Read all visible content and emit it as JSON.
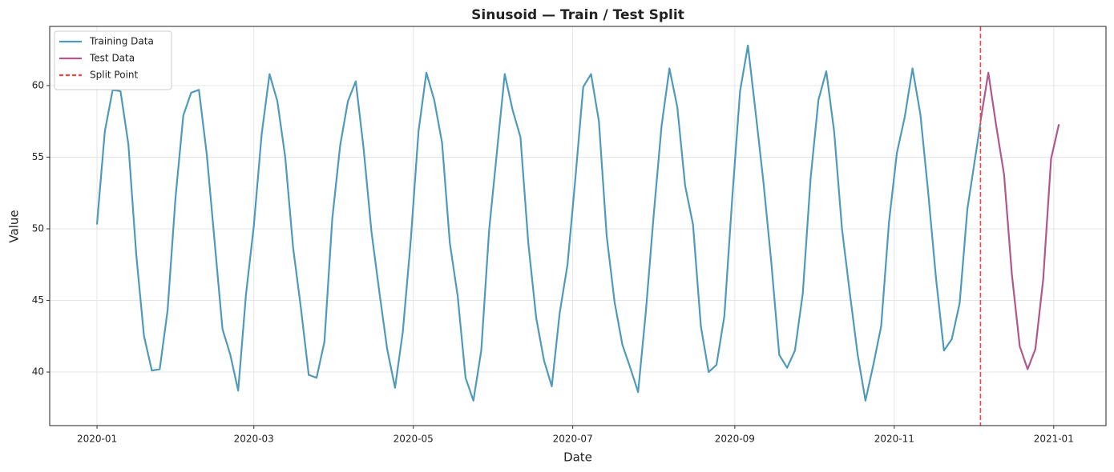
{
  "chart_data": {
    "type": "line",
    "title": "Sinusoid — Train / Test Split",
    "x_label": "Date",
    "y_label": "Value",
    "xlim": [
      -18.1,
      386
    ],
    "ylim": [
      36.26,
      64.13
    ],
    "xticks": [
      {
        "value": 0,
        "label": "2020-01"
      },
      {
        "value": 60,
        "label": "2020-03"
      },
      {
        "value": 121,
        "label": "2020-05"
      },
      {
        "value": 182,
        "label": "2020-07"
      },
      {
        "value": 244,
        "label": "2020-09"
      },
      {
        "value": 305,
        "label": "2020-11"
      },
      {
        "value": 366,
        "label": "2021-01"
      }
    ],
    "yticks": [
      40,
      45,
      50,
      55,
      60
    ],
    "grid": true,
    "legend": "upper-left",
    "series": [
      {
        "name": "Training Data",
        "color": "#4f9aba",
        "x": [
          0,
          3,
          6,
          9,
          12,
          15,
          18,
          21,
          24,
          27,
          30,
          33,
          36,
          39,
          42,
          45,
          48,
          51,
          54,
          57,
          60,
          63,
          66,
          69,
          72,
          75,
          78,
          81,
          84,
          87,
          90,
          93,
          96,
          99,
          102,
          105,
          108,
          111,
          114,
          117,
          120,
          123,
          126,
          129,
          132,
          135,
          138,
          141,
          144,
          147,
          150,
          153,
          156,
          159,
          162,
          165,
          168,
          171,
          174,
          177,
          180,
          183,
          186,
          189,
          192,
          195,
          198,
          201,
          204,
          207,
          210,
          213,
          216,
          219,
          222,
          225,
          228,
          231,
          234,
          237,
          240,
          243,
          246,
          249,
          252,
          255,
          258,
          261,
          264,
          267,
          270,
          273,
          276,
          279,
          282,
          285,
          288,
          291,
          294,
          297,
          300,
          303,
          306,
          309,
          312,
          315,
          318,
          321,
          324,
          327,
          330,
          333,
          336,
          338
        ],
        "values": [
          50.3,
          56.8,
          59.7,
          59.6,
          55.9,
          48.2,
          42.5,
          40.1,
          40.2,
          44.3,
          52.1,
          57.9,
          59.5,
          59.7,
          55.2,
          49.1,
          43.0,
          41.2,
          38.7,
          45.4,
          50.2,
          56.6,
          60.8,
          58.9,
          55.0,
          48.7,
          44.5,
          39.8,
          39.6,
          42.1,
          50.7,
          55.8,
          58.9,
          60.3,
          55.6,
          49.8,
          45.6,
          41.6,
          38.9,
          42.8,
          49.1,
          56.8,
          60.9,
          59.0,
          56.0,
          49.0,
          45.3,
          39.6,
          38.0,
          41.5,
          49.9,
          55.4,
          60.8,
          58.3,
          56.4,
          49.0,
          43.8,
          40.8,
          39.0,
          44.1,
          47.5,
          53.5,
          59.9,
          60.8,
          57.5,
          49.5,
          44.9,
          41.9,
          40.3,
          38.6,
          44.3,
          51.0,
          57.2,
          61.2,
          58.5,
          53.0,
          50.3,
          43.2,
          40.0,
          40.5,
          43.9,
          52.1,
          59.6,
          62.8,
          58.1,
          53.2,
          47.6,
          41.2,
          40.3,
          41.5,
          45.5,
          53.5,
          59.0,
          61.0,
          56.8,
          50.0,
          45.5,
          41.2,
          38.0,
          40.5,
          43.2,
          50.5,
          55.3,
          57.8,
          61.2,
          58.0,
          52.5,
          46.5,
          41.5,
          42.3,
          44.8,
          51.4,
          55.0,
          57.4
        ]
      },
      {
        "name": "Test Data",
        "color": "#b0588a",
        "x": [
          338,
          341,
          344,
          347,
          350,
          353,
          356,
          359,
          362,
          365,
          368
        ],
        "values": [
          57.5,
          60.9,
          57.2,
          53.8,
          46.8,
          41.8,
          40.2,
          41.6,
          46.5,
          54.9,
          57.3
        ]
      }
    ],
    "vline": {
      "name": "Split Point",
      "color": "#ee4444",
      "x": 338
    }
  }
}
